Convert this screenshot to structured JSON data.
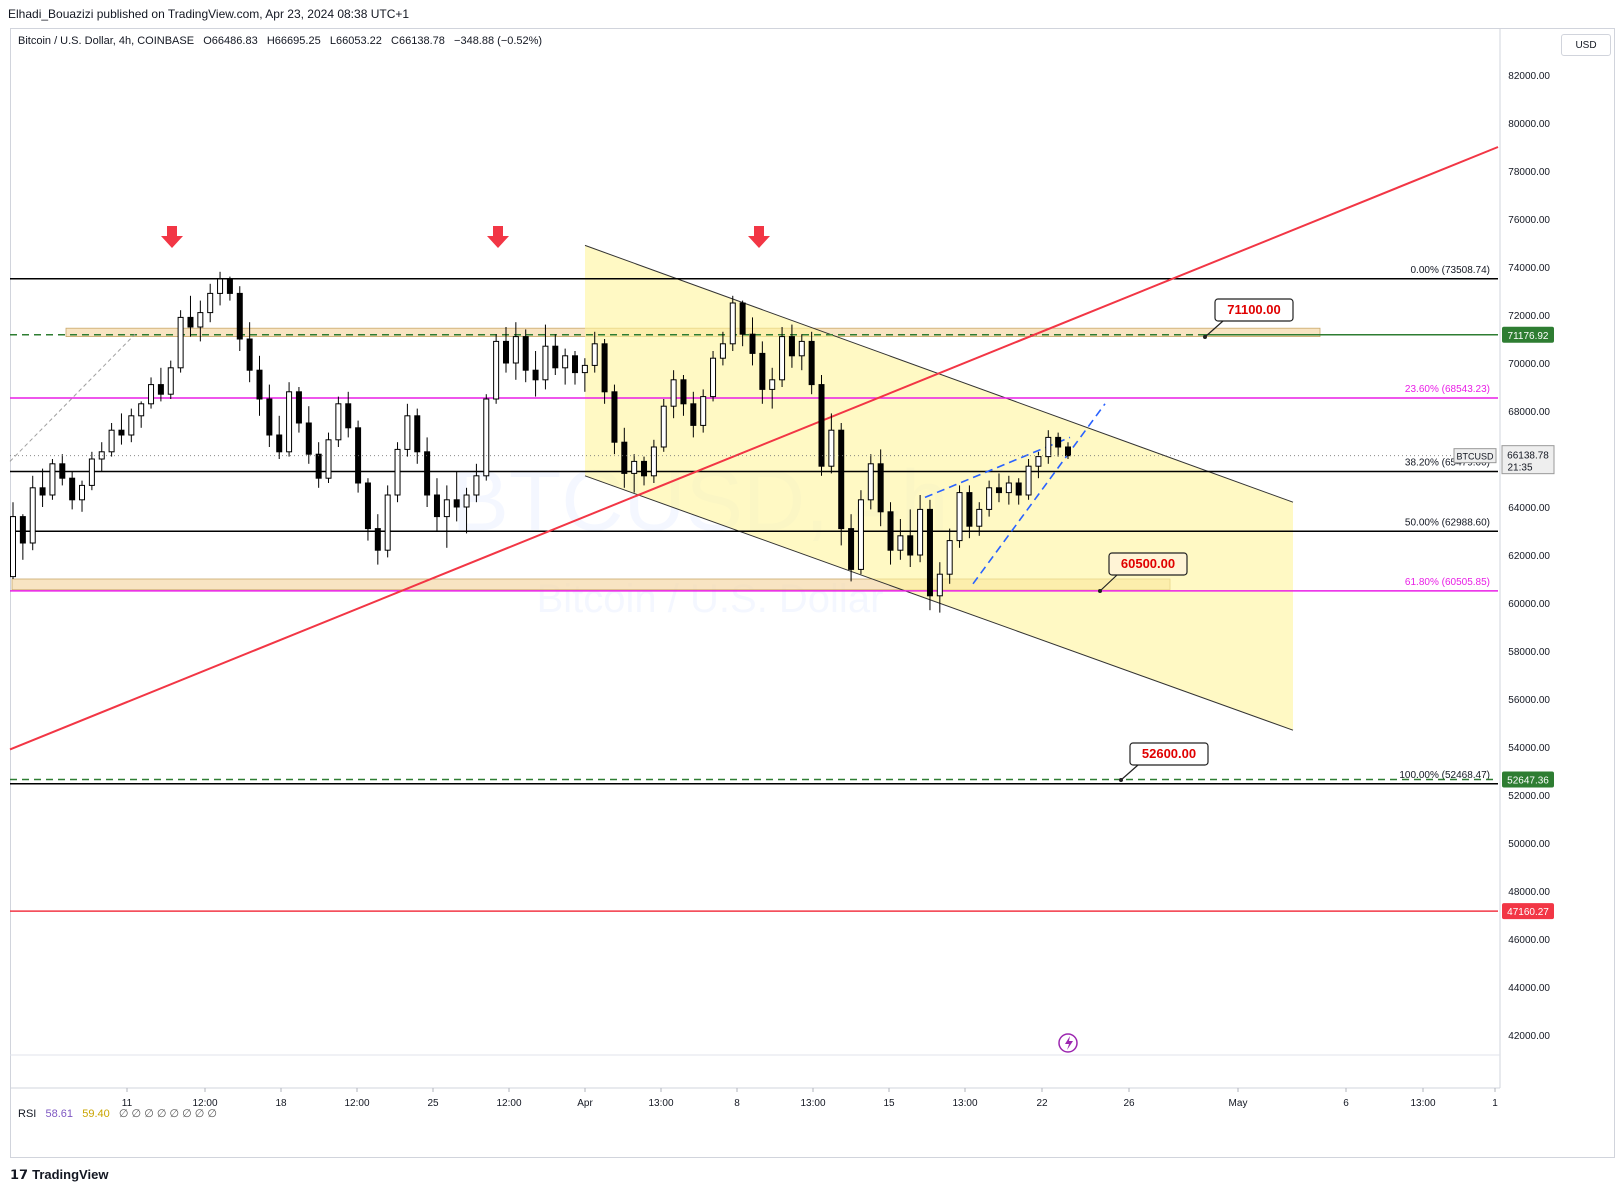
{
  "header": {
    "published": "Elhadi_Bouazizi published on TradingView.com, Apr 23, 2024 08:38 UTC+1"
  },
  "legend": {
    "symbol": "Bitcoin / U.S. Dollar, 4h, COINBASE",
    "open": "O66486.83",
    "high": "H66695.25",
    "low": "L66053.22",
    "close": "C66138.78",
    "change": "−348.88 (−0.52%)"
  },
  "currency_button": "USD",
  "watermark": {
    "ticker": "BTCUSD, 4h",
    "name": "Bitcoin / U.S. Dollar"
  },
  "rsi": {
    "label": "RSI",
    "v1": "58.61",
    "v2": "59.40",
    "rest": "∅ ∅ ∅ ∅ ∅ ∅ ∅ ∅"
  },
  "footer": {
    "brand": "TradingView",
    "logo_icon": "tradingview-logo-icon"
  },
  "colors": {
    "candle": "#000000",
    "fib_black": "#000000",
    "fib_magenta": "#e91ee6",
    "trend_red": "#f23645",
    "channel_fill": "#fff59d",
    "zone_fill": "#f5d9a8",
    "green_dash": "#2e7d32",
    "blue_dash": "#2962ff",
    "arrow_red": "#f23645"
  },
  "chart_data": {
    "type": "candlestick",
    "title": "Bitcoin / U.S. Dollar, 4h, COINBASE",
    "ylim": [
      40500,
      84000
    ],
    "y_ticks": [
      "82000.00",
      "80000.00",
      "78000.00",
      "76000.00",
      "74000.00",
      "72000.00",
      "70000.00",
      "68000.00",
      "66000.00",
      "64000.00",
      "62000.00",
      "60000.00",
      "58000.00",
      "56000.00",
      "54000.00",
      "52000.00",
      "50000.00",
      "48000.00",
      "46000.00",
      "44000.00",
      "42000.00"
    ],
    "x_ticks": [
      "11",
      "12:00",
      "18",
      "12:00",
      "25",
      "12:00",
      "Apr",
      "13:00",
      "8",
      "13:00",
      "15",
      "13:00",
      "22",
      "26",
      "May",
      "6",
      "13:00",
      "1"
    ],
    "last_price": {
      "label": "BTCUSD",
      "value": "66138.78",
      "countdown": "21:35"
    },
    "price_labels": [
      {
        "value": "71176.92",
        "color": "#2e7d32"
      },
      {
        "value": "52647.36",
        "color": "#2e7d32"
      },
      {
        "value": "47160.27",
        "color": "#f23645"
      }
    ],
    "fib_levels": [
      {
        "label": "0.00% (73508.74)",
        "price": 73508.74,
        "color": "#000000"
      },
      {
        "label": "23.60% (68543.23)",
        "price": 68543.23,
        "color": "#e91ee6"
      },
      {
        "label": "38.20% (65479.00)",
        "price": 65479.0,
        "color": "#000000"
      },
      {
        "label": "50.00% (62988.60)",
        "price": 62988.6,
        "color": "#000000"
      },
      {
        "label": "61.80% (60505.85)",
        "price": 60505.85,
        "color": "#e91ee6"
      },
      {
        "label": "100.00% (52468.47)",
        "price": 52468.47,
        "color": "#000000"
      }
    ],
    "callouts": [
      "71100.00",
      "60500.00",
      "52600.00"
    ],
    "horizontal_lines": [
      {
        "price": 71176.92,
        "style": "dashed",
        "color": "#2e7d32"
      },
      {
        "price": 52647.36,
        "style": "dashed",
        "color": "#2e7d32"
      },
      {
        "price": 47160.27,
        "style": "solid",
        "color": "#f23645"
      }
    ],
    "trendline": {
      "from_price": 53900,
      "to_price": 79000
    },
    "channel": {
      "upper_start": 74900,
      "upper_end": 64200,
      "lower_start": 65300,
      "lower_end": 54700
    },
    "candles": [
      [
        61100,
        64200,
        61000,
        63600
      ],
      [
        63600,
        63700,
        61800,
        62500
      ],
      [
        62500,
        65300,
        62200,
        64800
      ],
      [
        64800,
        65600,
        64000,
        64500
      ],
      [
        64500,
        66000,
        64300,
        65800
      ],
      [
        65800,
        66200,
        64900,
        65200
      ],
      [
        65200,
        65500,
        63900,
        64300
      ],
      [
        64300,
        65100,
        63800,
        64900
      ],
      [
        64900,
        66300,
        64700,
        66000
      ],
      [
        66000,
        66700,
        65500,
        66300
      ],
      [
        66300,
        67500,
        66100,
        67200
      ],
      [
        67200,
        67900,
        66600,
        67000
      ],
      [
        67000,
        68100,
        66700,
        67800
      ],
      [
        67800,
        68400,
        67300,
        68300
      ],
      [
        68300,
        69400,
        68100,
        69100
      ],
      [
        69100,
        69800,
        68400,
        68700
      ],
      [
        68700,
        70100,
        68500,
        69800
      ],
      [
        69800,
        72200,
        69600,
        71900
      ],
      [
        71900,
        72800,
        71100,
        71500
      ],
      [
        71500,
        72600,
        70900,
        72100
      ],
      [
        72100,
        73300,
        71700,
        72900
      ],
      [
        72900,
        73800,
        72400,
        73500
      ],
      [
        73500,
        73600,
        72600,
        72900
      ],
      [
        72900,
        73200,
        70500,
        71000
      ],
      [
        71000,
        71700,
        69200,
        69700
      ],
      [
        69700,
        70300,
        67800,
        68500
      ],
      [
        68500,
        69100,
        66500,
        67000
      ],
      [
        67000,
        67800,
        66000,
        66300
      ],
      [
        66300,
        69200,
        66100,
        68800
      ],
      [
        68800,
        69000,
        67100,
        67500
      ],
      [
        67500,
        68200,
        65800,
        66200
      ],
      [
        66200,
        66700,
        64800,
        65200
      ],
      [
        65200,
        67100,
        65000,
        66800
      ],
      [
        66800,
        68600,
        66500,
        68300
      ],
      [
        68300,
        68800,
        66900,
        67300
      ],
      [
        67300,
        67600,
        64600,
        65000
      ],
      [
        65000,
        65200,
        62600,
        63100
      ],
      [
        63100,
        63700,
        61600,
        62200
      ],
      [
        62200,
        64900,
        61900,
        64500
      ],
      [
        64500,
        66700,
        64200,
        66400
      ],
      [
        66400,
        68300,
        66100,
        67800
      ],
      [
        67800,
        68100,
        65800,
        66300
      ],
      [
        66300,
        66900,
        64000,
        64500
      ],
      [
        64500,
        65200,
        63000,
        63600
      ],
      [
        63600,
        64900,
        62300,
        64300
      ],
      [
        64300,
        65500,
        63400,
        64000
      ],
      [
        64000,
        64800,
        62900,
        64500
      ],
      [
        64500,
        65800,
        64200,
        65300
      ],
      [
        65300,
        68700,
        65100,
        68500
      ],
      [
        68500,
        71200,
        68300,
        70900
      ],
      [
        70900,
        71500,
        69600,
        70000
      ],
      [
        70000,
        71700,
        69300,
        71100
      ],
      [
        71100,
        71400,
        69200,
        69700
      ],
      [
        69700,
        70500,
        68600,
        69300
      ],
      [
        69300,
        71600,
        68900,
        70700
      ],
      [
        70700,
        71200,
        69500,
        69800
      ],
      [
        69800,
        70600,
        69100,
        70300
      ],
      [
        70300,
        70500,
        69100,
        69600
      ],
      [
        69600,
        70200,
        68800,
        69900
      ],
      [
        69900,
        71300,
        69600,
        70800
      ],
      [
        70800,
        71000,
        68300,
        68800
      ],
      [
        68800,
        69100,
        66200,
        66700
      ],
      [
        66700,
        67300,
        64800,
        65400
      ],
      [
        65400,
        66200,
        64600,
        65900
      ],
      [
        65900,
        66100,
        64900,
        65300
      ],
      [
        65300,
        66800,
        65000,
        66500
      ],
      [
        66500,
        68500,
        66300,
        68200
      ],
      [
        68200,
        69700,
        67700,
        69300
      ],
      [
        69300,
        69500,
        67800,
        68300
      ],
      [
        68300,
        68800,
        66900,
        67400
      ],
      [
        67400,
        68900,
        67100,
        68600
      ],
      [
        68600,
        70500,
        68400,
        70200
      ],
      [
        70200,
        71300,
        69900,
        70800
      ],
      [
        70800,
        72800,
        70500,
        72500
      ],
      [
        72500,
        72600,
        70700,
        71200
      ],
      [
        71200,
        71900,
        69900,
        70400
      ],
      [
        70400,
        70900,
        68300,
        68900
      ],
      [
        68900,
        69800,
        68100,
        69300
      ],
      [
        69300,
        71500,
        69000,
        71100
      ],
      [
        71100,
        71600,
        69800,
        70300
      ],
      [
        70300,
        71200,
        69700,
        70900
      ],
      [
        70900,
        71300,
        68700,
        69100
      ],
      [
        69100,
        69500,
        65300,
        65700
      ],
      [
        65700,
        67900,
        65400,
        67200
      ],
      [
        67200,
        67500,
        62400,
        63100
      ],
      [
        63100,
        63700,
        60900,
        61400
      ],
      [
        61400,
        64700,
        61200,
        64300
      ],
      [
        64300,
        66200,
        63900,
        65800
      ],
      [
        65800,
        66400,
        63200,
        63800
      ],
      [
        63800,
        64200,
        61600,
        62200
      ],
      [
        62200,
        63500,
        61800,
        62800
      ],
      [
        62800,
        63900,
        61500,
        62000
      ],
      [
        62000,
        64500,
        61700,
        63900
      ],
      [
        63900,
        64300,
        59700,
        60300
      ],
      [
        60300,
        61700,
        59600,
        61200
      ],
      [
        61200,
        63100,
        60800,
        62600
      ],
      [
        62600,
        64900,
        62300,
        64600
      ],
      [
        64600,
        64900,
        62700,
        63200
      ],
      [
        63200,
        64200,
        62800,
        63900
      ],
      [
        63900,
        65100,
        63600,
        64800
      ],
      [
        64800,
        65400,
        64200,
        64600
      ],
      [
        64600,
        65300,
        64100,
        65000
      ],
      [
        65000,
        65200,
        64100,
        64500
      ],
      [
        64500,
        66000,
        64300,
        65700
      ],
      [
        65700,
        66300,
        65200,
        66100
      ],
      [
        66100,
        67200,
        65800,
        66900
      ],
      [
        66900,
        67100,
        66100,
        66500
      ],
      [
        66500,
        66700,
        66000,
        66139
      ]
    ]
  }
}
